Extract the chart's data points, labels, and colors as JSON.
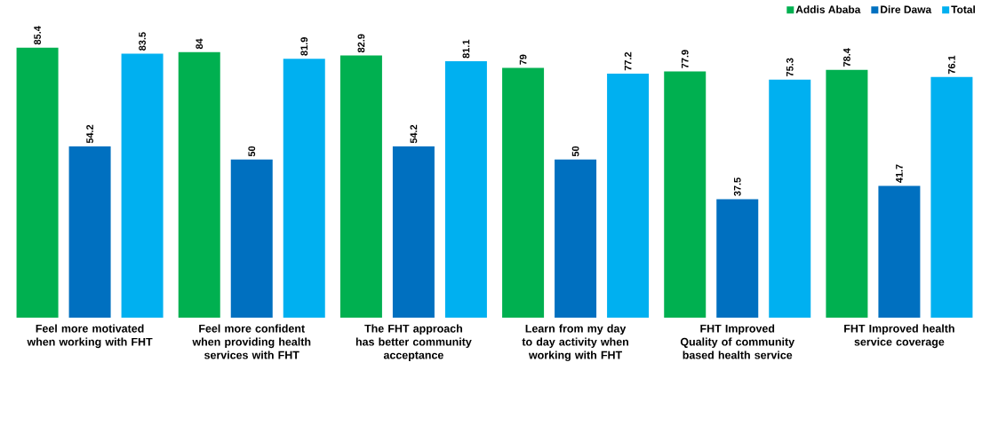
{
  "chart_data": {
    "type": "bar",
    "categories": [
      "Feel more motivated when working with FHT",
      "Feel more confident when providing health services with FHT",
      "The FHT approach has better community acceptance",
      "Learn from my day to day activity when working with FHT",
      "FHT Improved Quality of community based health service",
      "FHT Improved health service coverage"
    ],
    "series": [
      {
        "name": "Addis Ababa",
        "color": "#00b050",
        "values": [
          85.4,
          84,
          82.9,
          79,
          77.9,
          78.4
        ]
      },
      {
        "name": "Dire Dawa",
        "color": "#0070c0",
        "values": [
          54.2,
          50,
          54.2,
          50,
          37.5,
          41.7
        ]
      },
      {
        "name": "Total",
        "color": "#00b0f0",
        "values": [
          83.5,
          81.9,
          81.1,
          77.2,
          75.3,
          76.1
        ]
      }
    ],
    "tick_labels": "x",
    "data_labels": true,
    "legend": "top right",
    "grid": false
  }
}
